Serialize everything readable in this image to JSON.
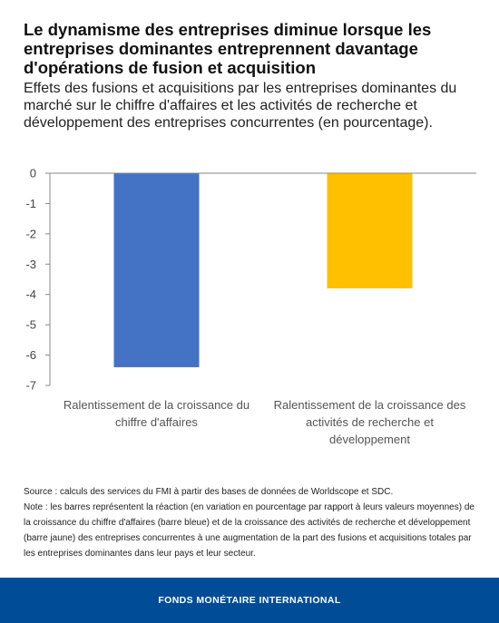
{
  "header": {
    "title": "Le dynamisme des entreprises diminue lorsque les entreprises dominantes entreprennent davantage d'opérations de fusion et acquisition",
    "subtitle": "Effets des fusions et acquisitions par les entreprises dominantes du marché sur le chiffre d'affaires et les activités de recherche et développement des entreprises concurrentes (en pourcentage)."
  },
  "chart_data": {
    "type": "bar",
    "categories": [
      [
        "Ralentissement de la croissance du",
        "chiffre d'affaires"
      ],
      [
        "Ralentissement de la croissance des",
        "activités de recherche et",
        "développement"
      ]
    ],
    "values": [
      -6.4,
      -3.8
    ],
    "colors": [
      "#4472c4",
      "#ffc000"
    ],
    "ylim": [
      -7,
      0
    ],
    "yticks": [
      "0",
      "-1",
      "-2",
      "-3",
      "-4",
      "-5",
      "-6",
      "-7"
    ],
    "xlabel": "",
    "ylabel": "",
    "grid": false
  },
  "notes": {
    "source": "Source : calculs des services du FMI à partir des bases de données de Worldscope et SDC.",
    "note": "Note : les barres représentent la réaction (en variation en pourcentage par rapport à leurs valeurs moyennes) de la croissance du chiffre d'affaires (barre bleue) et de la croissance des activités de recherche et développement (barre jaune) des entreprises concurrentes à une augmentation de la part des fusions et acquisitions totales par les entreprises dominantes dans leur pays et leur secteur."
  },
  "footer": {
    "label": "FONDS MONÉTAIRE INTERNATIONAL"
  }
}
